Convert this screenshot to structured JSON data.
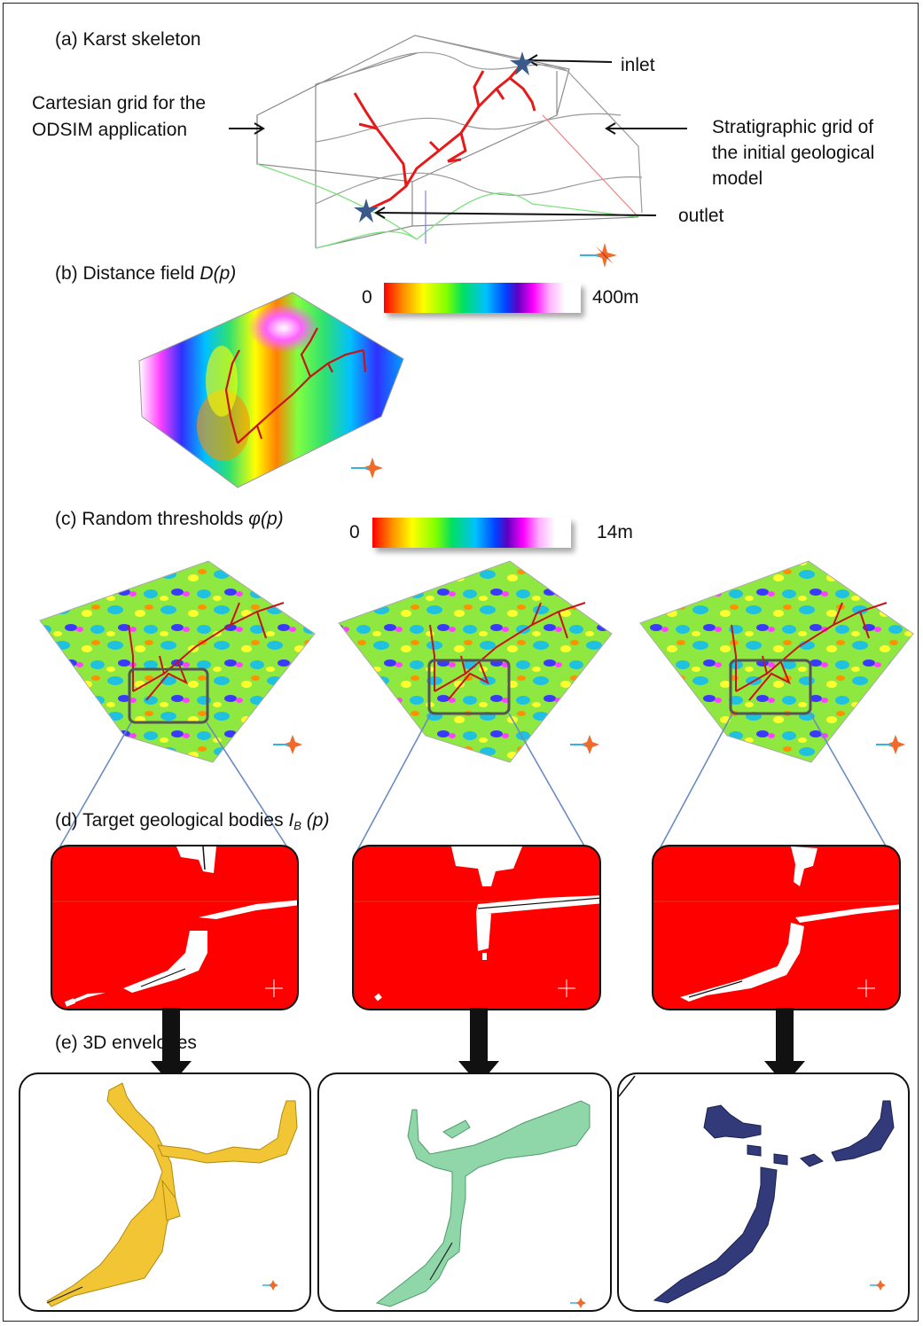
{
  "panels": {
    "a_title": "(a) Karst skeleton",
    "b_title": "(b) Distance field ",
    "b_symbol": "D(p)",
    "c_title": "(c) Random thresholds ",
    "c_symbol": "φ(p)",
    "d_title": "(d) Target geological bodies ",
    "d_symbol_main": "I",
    "d_symbol_sub": "B",
    "d_symbol_tail": " (p)",
    "e_title": "(e) 3D envelopes"
  },
  "annotations": {
    "inlet": "inlet",
    "outlet": "outlet",
    "cartesian_line1": "Cartesian grid  for the",
    "cartesian_line2": "ODSIM application",
    "strat_line1": "Stratigraphic grid of",
    "strat_line2": "the initial geological",
    "strat_line3": "model"
  },
  "colorbars": {
    "distance": {
      "min": "0",
      "max": "400m"
    },
    "threshold": {
      "min": "0",
      "max": "14m"
    }
  },
  "colors": {
    "skeleton": "#e51a1a",
    "star": "#3b5a8a",
    "envelope_1": "#f2c534",
    "envelope_2": "#8fd6a8",
    "envelope_3": "#323a7a",
    "body_fill": "#ff0000"
  },
  "icons": {
    "inlet_marker": "star-icon",
    "outlet_marker": "star-icon",
    "orientation": "compass-icon"
  }
}
